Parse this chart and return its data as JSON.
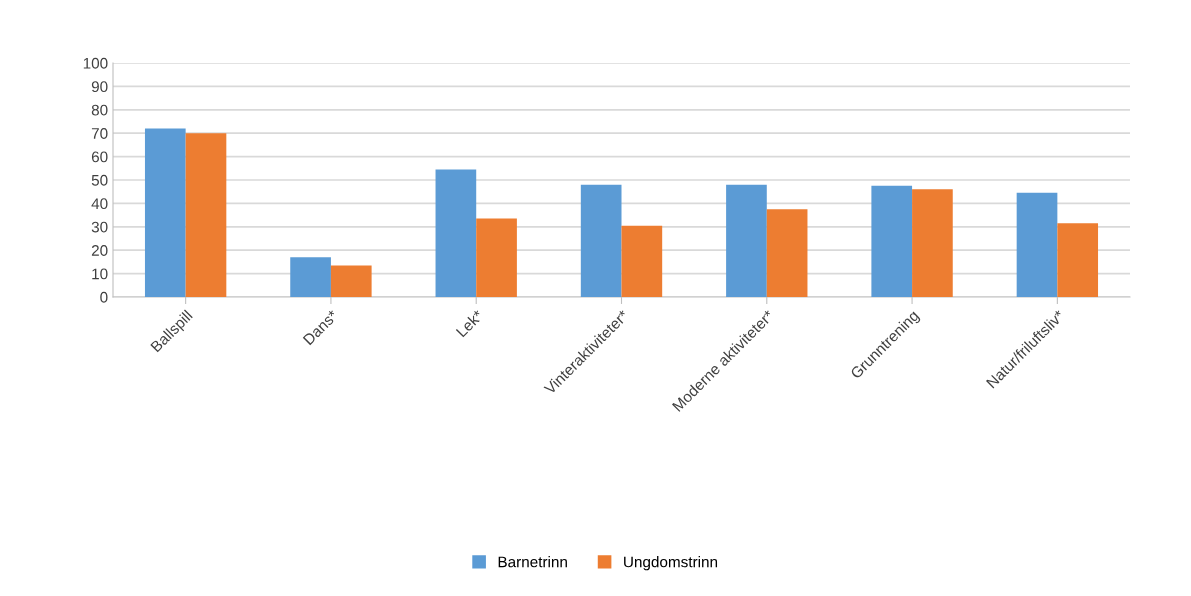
{
  "chart_data": {
    "type": "bar",
    "categories": [
      "Ballspill",
      "Dans*",
      "Lek*",
      "Vinteraktiviteter*",
      "Moderne aktiviteter*",
      "Grunntrening",
      "Natur/friluftsliv*"
    ],
    "series": [
      {
        "name": "Barnetrinn",
        "color": "#5b9bd5",
        "values": [
          72,
          17,
          54.5,
          48,
          48,
          47.5,
          44.5
        ]
      },
      {
        "name": "Ungdomstrinn",
        "color": "#ed7d31",
        "values": [
          70,
          13.5,
          33.5,
          30.5,
          37.5,
          46,
          31.5
        ]
      }
    ],
    "ylim": [
      0,
      100
    ],
    "yticks": [
      0,
      10,
      20,
      30,
      40,
      50,
      60,
      70,
      80,
      90,
      100
    ],
    "grid": "y",
    "legend": "bottom"
  }
}
